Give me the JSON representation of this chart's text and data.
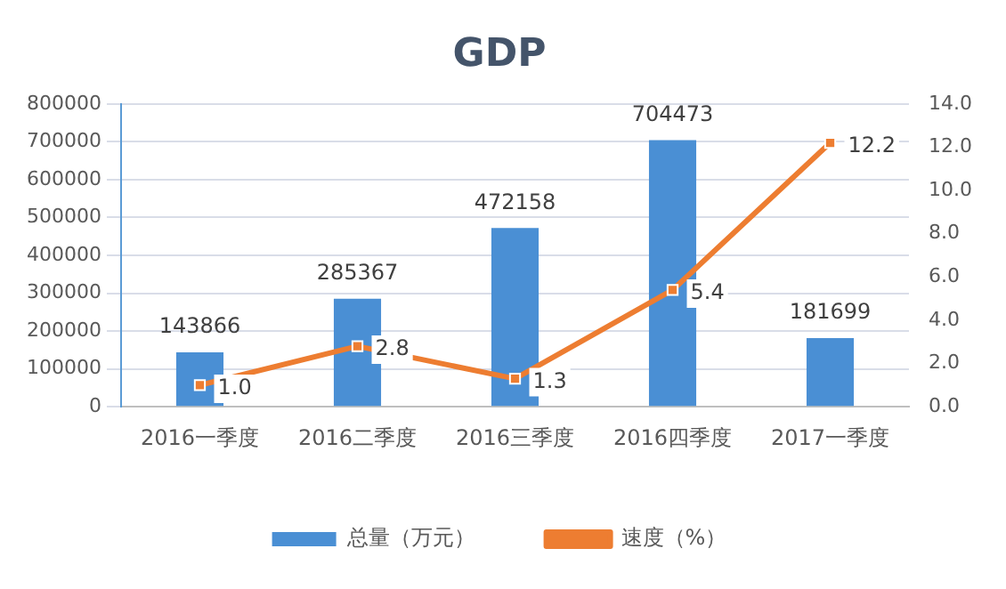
{
  "chart_data": {
    "type": "bar",
    "title": "GDP",
    "categories": [
      "2016一季度",
      "2016二季度",
      "2016三季度",
      "2016四季度",
      "2017一季度"
    ],
    "series": [
      {
        "name": "总量（万元）",
        "color": "#4a8fd4",
        "values": [
          143866,
          285367,
          472158,
          704473,
          181699
        ]
      },
      {
        "name": "速度（%）",
        "type": "line",
        "axis": "y2",
        "color": "#ed7d31",
        "values": [
          1.0,
          2.8,
          1.3,
          5.4,
          12.2
        ],
        "value_labels": [
          "1.0",
          "2.8",
          "1.3",
          "5.4",
          "12.2"
        ]
      }
    ],
    "ylim": [
      0,
      800000
    ],
    "yticks": [
      0,
      100000,
      200000,
      300000,
      400000,
      500000,
      600000,
      700000,
      800000
    ],
    "y2lim": [
      0,
      14
    ],
    "y2ticks": [
      {
        "value": 0,
        "label": "0.0"
      },
      {
        "value": 2,
        "label": "2.0"
      },
      {
        "value": 4,
        "label": "4.0"
      },
      {
        "value": 6,
        "label": "6.0"
      },
      {
        "value": 8,
        "label": "8.0"
      },
      {
        "value": 10,
        "label": "10.0"
      },
      {
        "value": 12,
        "label": "12.0"
      },
      {
        "value": 14,
        "label": "14.0"
      }
    ],
    "grid": "y",
    "legend": "bottom",
    "marker": "square",
    "data_labels": true
  }
}
